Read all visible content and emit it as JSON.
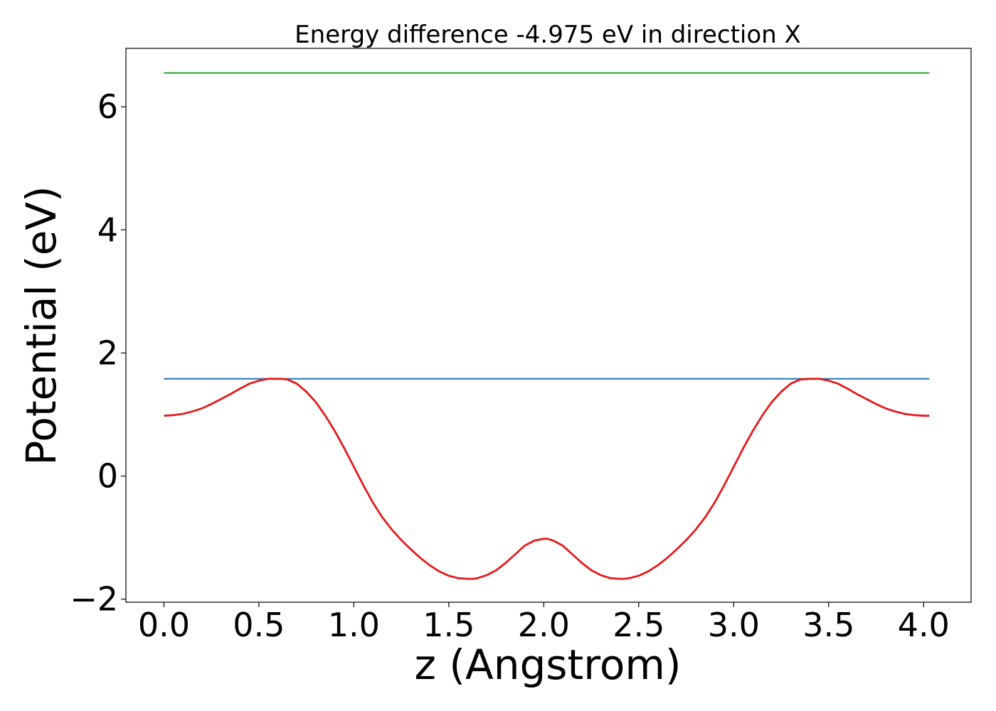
{
  "chart_data": {
    "type": "line",
    "title": "Energy difference -4.975 eV in direction X",
    "xlabel": "z (Angstrom)",
    "ylabel": "Potential (eV)",
    "xlim": [
      -0.2,
      4.25
    ],
    "ylim": [
      -2.05,
      6.95
    ],
    "xticks": [
      0.0,
      0.5,
      1.0,
      1.5,
      2.0,
      2.5,
      3.0,
      3.5,
      4.0
    ],
    "xtick_labels": [
      "0.0",
      "0.5",
      "1.0",
      "1.5",
      "2.0",
      "2.5",
      "3.0",
      "3.5",
      "4.0"
    ],
    "yticks": [
      -2,
      0,
      2,
      4,
      6
    ],
    "ytick_labels": [
      "−2",
      "0",
      "2",
      "4",
      "6"
    ],
    "grid": false,
    "series": [
      {
        "color": "#2ca02c",
        "x": [
          0.0,
          4.03
        ],
        "y": [
          6.55,
          6.55
        ]
      },
      {
        "color": "#1f77b4",
        "x": [
          0.0,
          4.03
        ],
        "y": [
          1.58,
          1.58
        ]
      },
      {
        "color": "#e41a1c",
        "x": [
          0.0,
          0.05,
          0.1,
          0.15,
          0.2,
          0.25,
          0.3,
          0.35,
          0.4,
          0.45,
          0.5,
          0.55,
          0.6,
          0.62,
          0.65,
          0.7,
          0.75,
          0.8,
          0.85,
          0.9,
          0.95,
          1.0,
          1.05,
          1.1,
          1.15,
          1.2,
          1.25,
          1.3,
          1.35,
          1.4,
          1.45,
          1.5,
          1.55,
          1.6,
          1.63,
          1.65,
          1.7,
          1.75,
          1.8,
          1.85,
          1.9,
          1.95,
          2.0,
          2.02,
          2.05,
          2.1,
          2.15,
          2.2,
          2.25,
          2.3,
          2.35,
          2.4,
          2.42,
          2.45,
          2.5,
          2.55,
          2.6,
          2.65,
          2.7,
          2.75,
          2.8,
          2.85,
          2.9,
          2.95,
          3.0,
          3.05,
          3.1,
          3.15,
          3.2,
          3.25,
          3.3,
          3.35,
          3.4,
          3.43,
          3.45,
          3.5,
          3.55,
          3.6,
          3.65,
          3.7,
          3.75,
          3.8,
          3.85,
          3.9,
          3.95,
          4.0,
          4.03
        ],
        "y": [
          0.98,
          0.99,
          1.01,
          1.05,
          1.1,
          1.17,
          1.25,
          1.33,
          1.42,
          1.5,
          1.55,
          1.58,
          1.58,
          1.58,
          1.57,
          1.5,
          1.37,
          1.2,
          0.98,
          0.73,
          0.45,
          0.15,
          -0.15,
          -0.43,
          -0.67,
          -0.87,
          -1.04,
          -1.19,
          -1.33,
          -1.45,
          -1.55,
          -1.62,
          -1.66,
          -1.67,
          -1.67,
          -1.66,
          -1.61,
          -1.53,
          -1.41,
          -1.27,
          -1.13,
          -1.05,
          -1.02,
          -1.02,
          -1.05,
          -1.13,
          -1.27,
          -1.41,
          -1.53,
          -1.61,
          -1.66,
          -1.67,
          -1.67,
          -1.66,
          -1.62,
          -1.55,
          -1.45,
          -1.33,
          -1.19,
          -1.04,
          -0.87,
          -0.67,
          -0.43,
          -0.15,
          0.15,
          0.45,
          0.73,
          0.98,
          1.2,
          1.37,
          1.5,
          1.57,
          1.58,
          1.58,
          1.58,
          1.55,
          1.5,
          1.42,
          1.33,
          1.25,
          1.17,
          1.1,
          1.05,
          1.01,
          0.99,
          0.98,
          0.98
        ]
      }
    ]
  }
}
